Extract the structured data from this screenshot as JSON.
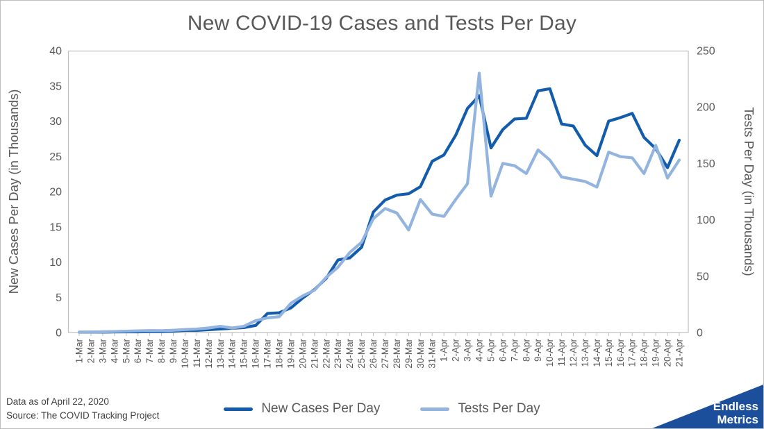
{
  "chart_data": {
    "type": "line",
    "title": "New COVID-19 Cases and Tests Per Day",
    "legend_position": "bottom",
    "grid": false,
    "categories": [
      "1-Mar",
      "2-Mar",
      "3-Mar",
      "4-Mar",
      "5-Mar",
      "6-Mar",
      "7-Mar",
      "8-Mar",
      "9-Mar",
      "10-Mar",
      "11-Mar",
      "12-Mar",
      "13-Mar",
      "14-Mar",
      "15-Mar",
      "16-Mar",
      "17-Mar",
      "18-Mar",
      "19-Mar",
      "20-Mar",
      "21-Mar",
      "22-Mar",
      "23-Mar",
      "24-Mar",
      "25-Mar",
      "26-Mar",
      "27-Mar",
      "28-Mar",
      "29-Mar",
      "30-Mar",
      "31-Mar",
      "1-Apr",
      "2-Apr",
      "3-Apr",
      "4-Apr",
      "5-Apr",
      "6-Apr",
      "7-Apr",
      "8-Apr",
      "9-Apr",
      "10-Apr",
      "11-Apr",
      "12-Apr",
      "13-Apr",
      "14-Apr",
      "15-Apr",
      "16-Apr",
      "17-Apr",
      "18-Apr",
      "19-Apr",
      "20-Apr",
      "21-Apr"
    ],
    "series": [
      {
        "name": "New Cases Per Day",
        "axis": "left",
        "color": "#135CAC",
        "values": [
          0.05,
          0.05,
          0.06,
          0.08,
          0.1,
          0.1,
          0.12,
          0.12,
          0.2,
          0.3,
          0.3,
          0.4,
          0.5,
          0.6,
          0.7,
          1.0,
          2.7,
          2.8,
          3.5,
          4.9,
          6.1,
          7.7,
          10.3,
          10.6,
          12.1,
          17.1,
          18.8,
          19.5,
          19.7,
          20.7,
          24.3,
          25.2,
          28.0,
          31.8,
          33.6,
          26.2,
          28.8,
          30.3,
          30.4,
          34.3,
          34.6,
          29.6,
          29.3,
          26.6,
          25.1,
          30.0,
          30.5,
          31.1,
          27.7,
          26.1,
          23.4,
          27.3
        ]
      },
      {
        "name": "Tests Per Day",
        "axis": "right",
        "color": "#92B4DE",
        "values": [
          0.3,
          0.4,
          0.6,
          0.9,
          1.2,
          1.5,
          1.7,
          1.6,
          2.0,
          2.6,
          3.1,
          4.0,
          5.5,
          4.0,
          5.5,
          10.5,
          13.0,
          14.0,
          26.0,
          32.5,
          37.5,
          49.0,
          58.0,
          71.0,
          80.0,
          101.0,
          110.0,
          106.0,
          91.0,
          118.0,
          105.0,
          103.0,
          118.0,
          132.0,
          230.0,
          121.0,
          150.0,
          148.0,
          141.0,
          162.0,
          153.0,
          138.0,
          136.0,
          134.0,
          129.0,
          160.0,
          156.0,
          155.0,
          141.0,
          166.0,
          137.0,
          153.0
        ]
      }
    ],
    "left_axis": {
      "label": "New Cases Per Day (in Thousands)",
      "min": 0,
      "max": 40,
      "step": 5
    },
    "right_axis": {
      "label": "Tests Per Day (in Thousands)",
      "min": 0,
      "max": 250,
      "step": 50
    },
    "colors": {
      "plot_border": "#BFBFBF",
      "tick_text": "#595959",
      "axis_title_text": "#595959",
      "title_text": "#595959"
    }
  },
  "footer": {
    "line1": "Data as of April 22, 2020",
    "line2": "Source: The COVID Tracking Project"
  },
  "logo": {
    "line1": "Endless",
    "line2": "Metrics",
    "color": "#1B4F9C"
  }
}
